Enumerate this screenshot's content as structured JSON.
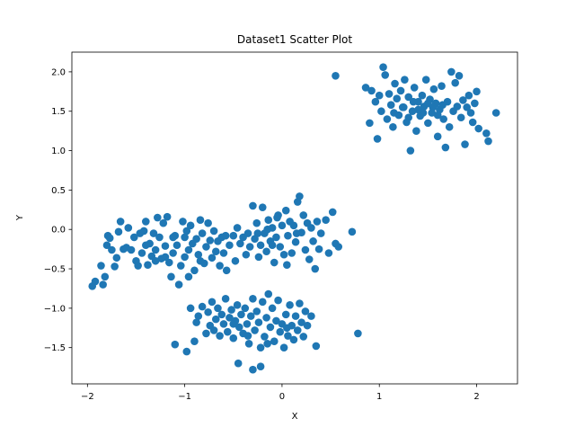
{
  "chart_data": {
    "type": "scatter",
    "title": "Dataset1 Scatter Plot",
    "xlabel": "X",
    "ylabel": "Y",
    "xlim": [
      -2.16,
      2.42
    ],
    "ylim": [
      -1.96,
      2.25
    ],
    "xticks": [
      -2,
      -1,
      0,
      1,
      2
    ],
    "xtick_labels": [
      "−2",
      "−1",
      "0",
      "1",
      "2"
    ],
    "yticks": [
      -1.5,
      -1.0,
      -0.5,
      0.0,
      0.5,
      1.0,
      1.5,
      2.0
    ],
    "ytick_labels": [
      "−1.5",
      "−1.0",
      "−0.5",
      "0.0",
      "0.5",
      "1.0",
      "1.5",
      "2.0"
    ],
    "grid": false,
    "marker_color": "#1f77b4",
    "points": [
      [
        -1.95,
        -0.72
      ],
      [
        -1.92,
        -0.66
      ],
      [
        -1.86,
        -0.46
      ],
      [
        -1.84,
        -0.7
      ],
      [
        -1.82,
        -0.6
      ],
      [
        -1.8,
        -0.2
      ],
      [
        -1.79,
        -0.08
      ],
      [
        -1.77,
        -0.11
      ],
      [
        -1.75,
        -0.26
      ],
      [
        -1.72,
        -0.47
      ],
      [
        -1.7,
        -0.36
      ],
      [
        -1.68,
        -0.03
      ],
      [
        -1.66,
        0.1
      ],
      [
        -1.63,
        -0.25
      ],
      [
        -1.6,
        -0.23
      ],
      [
        -1.58,
        0.02
      ],
      [
        -1.55,
        -0.26
      ],
      [
        -1.52,
        -0.1
      ],
      [
        -1.5,
        -0.4
      ],
      [
        -1.48,
        -0.46
      ],
      [
        -1.46,
        -0.05
      ],
      [
        -1.44,
        -0.3
      ],
      [
        -1.42,
        -0.02
      ],
      [
        -1.4,
        0.1
      ],
      [
        -1.38,
        -0.45
      ],
      [
        -1.36,
        -0.18
      ],
      [
        -1.34,
        -0.34
      ],
      [
        -1.32,
        -0.05
      ],
      [
        -1.3,
        -0.26
      ],
      [
        -1.28,
        0.15
      ],
      [
        -1.26,
        -0.1
      ],
      [
        -1.24,
        -0.37
      ],
      [
        -1.22,
        0.08
      ],
      [
        -1.2,
        -0.21
      ],
      [
        -1.18,
        0.16
      ],
      [
        -1.16,
        -0.42
      ],
      [
        -1.14,
        -0.6
      ],
      [
        -1.12,
        -0.3
      ],
      [
        -1.1,
        -0.08
      ],
      [
        -1.08,
        -0.2
      ],
      [
        -1.06,
        -0.7
      ],
      [
        -1.04,
        -0.46
      ],
      [
        -1.02,
        0.1
      ],
      [
        -1.0,
        -0.35
      ],
      [
        -0.98,
        -0.02
      ],
      [
        -0.96,
        -0.26
      ],
      [
        -0.94,
        0.05
      ],
      [
        -0.92,
        -0.18
      ],
      [
        -0.9,
        -0.52
      ],
      [
        -0.88,
        -0.12
      ],
      [
        -0.86,
        -0.32
      ],
      [
        -0.84,
        0.12
      ],
      [
        -0.82,
        -0.05
      ],
      [
        -0.8,
        -0.43
      ],
      [
        -0.78,
        -0.22
      ],
      [
        -0.76,
        0.08
      ],
      [
        -0.74,
        -0.14
      ],
      [
        -0.72,
        -0.36
      ],
      [
        -0.7,
        -0.02
      ],
      [
        -0.68,
        -0.28
      ],
      [
        -0.66,
        -0.15
      ],
      [
        -0.64,
        -0.46
      ],
      [
        -0.62,
        -0.1
      ],
      [
        -0.6,
        -0.3
      ],
      [
        -0.57,
        -0.52
      ],
      [
        -0.54,
        -0.2
      ],
      [
        -0.5,
        -0.08
      ],
      [
        -0.48,
        -0.4
      ],
      [
        -0.46,
        0.02
      ],
      [
        -0.43,
        -0.18
      ],
      [
        -0.4,
        -0.1
      ],
      [
        -0.37,
        -0.32
      ],
      [
        -0.35,
        -0.05
      ],
      [
        -0.33,
        -0.22
      ],
      [
        -0.3,
        0.3
      ],
      [
        -0.28,
        -0.12
      ],
      [
        -0.26,
        0.08
      ],
      [
        -0.24,
        -0.35
      ],
      [
        -0.22,
        -0.2
      ],
      [
        -0.2,
        0.28
      ],
      [
        -0.18,
        -0.05
      ],
      [
        -0.16,
        -0.28
      ],
      [
        -0.14,
        0.12
      ],
      [
        -0.12,
        -0.15
      ],
      [
        -0.1,
        0.02
      ],
      [
        -0.08,
        -0.42
      ],
      [
        -0.06,
        -0.1
      ],
      [
        -0.04,
        0.18
      ],
      [
        -0.02,
        -0.22
      ],
      [
        0.0,
        0.05
      ],
      [
        0.02,
        -0.32
      ],
      [
        0.04,
        0.24
      ],
      [
        0.06,
        -0.08
      ],
      [
        0.08,
        0.1
      ],
      [
        0.1,
        -0.3
      ],
      [
        0.12,
        0.05
      ],
      [
        0.14,
        -0.16
      ],
      [
        0.16,
        0.35
      ],
      [
        0.18,
        0.42
      ],
      [
        0.2,
        -0.04
      ],
      [
        0.22,
        0.18
      ],
      [
        0.24,
        -0.26
      ],
      [
        0.26,
        0.08
      ],
      [
        0.28,
        -0.38
      ],
      [
        0.3,
        0.02
      ],
      [
        0.32,
        -0.15
      ],
      [
        0.34,
        -0.5
      ],
      [
        0.36,
        0.1
      ],
      [
        0.38,
        -0.25
      ],
      [
        0.4,
        -0.05
      ],
      [
        0.45,
        0.12
      ],
      [
        0.48,
        -0.3
      ],
      [
        0.52,
        0.22
      ],
      [
        0.55,
        -0.18
      ],
      [
        0.58,
        -0.22
      ],
      [
        0.72,
        -0.03
      ],
      [
        -1.12,
        -0.1
      ],
      [
        -0.96,
        -0.6
      ],
      [
        -0.84,
        -0.4
      ],
      [
        -0.58,
        -0.08
      ],
      [
        -1.3,
        -0.4
      ],
      [
        -1.2,
        -0.35
      ],
      [
        -1.4,
        -0.2
      ],
      [
        -1.0,
        -0.1
      ],
      [
        -0.15,
        0.0
      ],
      [
        0.05,
        -0.45
      ],
      [
        -0.05,
        0.15
      ],
      [
        0.15,
        -0.05
      ],
      [
        -0.25,
        -0.05
      ],
      [
        -0.1,
        -0.2
      ],
      [
        -0.94,
        -1.0
      ],
      [
        -0.9,
        -1.42
      ],
      [
        -0.88,
        -1.18
      ],
      [
        -0.86,
        -1.1
      ],
      [
        -0.82,
        -0.98
      ],
      [
        -0.78,
        -1.32
      ],
      [
        -0.76,
        -1.05
      ],
      [
        -0.74,
        -1.22
      ],
      [
        -0.72,
        -0.92
      ],
      [
        -0.7,
        -1.28
      ],
      [
        -0.68,
        -1.14
      ],
      [
        -0.66,
        -1.0
      ],
      [
        -0.64,
        -1.35
      ],
      [
        -0.62,
        -1.08
      ],
      [
        -0.6,
        -1.2
      ],
      [
        -0.58,
        -0.88
      ],
      [
        -0.56,
        -1.3
      ],
      [
        -0.54,
        -1.12
      ],
      [
        -0.52,
        -1.02
      ],
      [
        -0.5,
        -1.38
      ],
      [
        -0.48,
        -1.16
      ],
      [
        -0.46,
        -0.96
      ],
      [
        -0.44,
        -1.24
      ],
      [
        -0.42,
        -1.08
      ],
      [
        -0.4,
        -1.32
      ],
      [
        -0.38,
        -1.0
      ],
      [
        -0.36,
        -1.2
      ],
      [
        -0.34,
        -1.45
      ],
      [
        -0.32,
        -1.1
      ],
      [
        -0.3,
        -0.88
      ],
      [
        -0.28,
        -1.28
      ],
      [
        -0.26,
        -1.04
      ],
      [
        -0.24,
        -1.18
      ],
      [
        -0.22,
        -1.5
      ],
      [
        -0.2,
        -0.92
      ],
      [
        -0.18,
        -1.36
      ],
      [
        -0.16,
        -1.12
      ],
      [
        -0.14,
        -0.82
      ],
      [
        -0.12,
        -1.24
      ],
      [
        -0.1,
        -1.0
      ],
      [
        -0.08,
        -1.42
      ],
      [
        -0.06,
        -1.16
      ],
      [
        -0.04,
        -0.9
      ],
      [
        -0.02,
        -1.3
      ],
      [
        0.0,
        -1.2
      ],
      [
        0.02,
        -1.5
      ],
      [
        0.04,
        -1.08
      ],
      [
        0.06,
        -1.35
      ],
      [
        0.08,
        -0.96
      ],
      [
        0.1,
        -1.22
      ],
      [
        0.12,
        -1.4
      ],
      [
        0.14,
        -1.1
      ],
      [
        0.16,
        -1.28
      ],
      [
        0.18,
        -0.94
      ],
      [
        0.2,
        -1.18
      ],
      [
        0.22,
        -1.36
      ],
      [
        0.24,
        -1.04
      ],
      [
        0.26,
        -1.22
      ],
      [
        0.3,
        -1.1
      ],
      [
        0.35,
        -1.48
      ],
      [
        -1.1,
        -1.46
      ],
      [
        -0.98,
        -1.55
      ],
      [
        -0.45,
        -1.7
      ],
      [
        -0.3,
        -1.78
      ],
      [
        -0.22,
        -1.74
      ],
      [
        0.78,
        -1.32
      ],
      [
        -0.5,
        -1.2
      ],
      [
        -0.35,
        -1.35
      ],
      [
        -0.15,
        -1.45
      ],
      [
        0.05,
        -1.25
      ],
      [
        0.55,
        1.95
      ],
      [
        0.86,
        1.8
      ],
      [
        0.9,
        1.35
      ],
      [
        0.92,
        1.76
      ],
      [
        0.96,
        1.62
      ],
      [
        0.98,
        1.15
      ],
      [
        1.0,
        1.7
      ],
      [
        1.02,
        1.5
      ],
      [
        1.04,
        2.06
      ],
      [
        1.06,
        1.96
      ],
      [
        1.08,
        1.4
      ],
      [
        1.1,
        1.72
      ],
      [
        1.12,
        1.58
      ],
      [
        1.14,
        1.3
      ],
      [
        1.16,
        1.85
      ],
      [
        1.18,
        1.66
      ],
      [
        1.2,
        1.45
      ],
      [
        1.22,
        1.76
      ],
      [
        1.24,
        1.55
      ],
      [
        1.26,
        1.9
      ],
      [
        1.28,
        1.36
      ],
      [
        1.3,
        1.68
      ],
      [
        1.32,
        1.0
      ],
      [
        1.34,
        1.5
      ],
      [
        1.36,
        1.8
      ],
      [
        1.38,
        1.25
      ],
      [
        1.4,
        1.62
      ],
      [
        1.42,
        1.44
      ],
      [
        1.44,
        1.7
      ],
      [
        1.46,
        1.56
      ],
      [
        1.48,
        1.9
      ],
      [
        1.5,
        1.35
      ],
      [
        1.52,
        1.65
      ],
      [
        1.54,
        1.48
      ],
      [
        1.56,
        1.78
      ],
      [
        1.58,
        1.6
      ],
      [
        1.6,
        1.18
      ],
      [
        1.62,
        1.52
      ],
      [
        1.64,
        1.82
      ],
      [
        1.66,
        1.4
      ],
      [
        1.68,
        1.04
      ],
      [
        1.7,
        1.62
      ],
      [
        1.72,
        1.3
      ],
      [
        1.74,
        2.0
      ],
      [
        1.76,
        1.5
      ],
      [
        1.78,
        1.86
      ],
      [
        1.8,
        1.56
      ],
      [
        1.82,
        1.95
      ],
      [
        1.84,
        1.42
      ],
      [
        1.86,
        1.64
      ],
      [
        1.88,
        1.08
      ],
      [
        1.9,
        1.55
      ],
      [
        1.92,
        1.7
      ],
      [
        1.94,
        1.48
      ],
      [
        1.96,
        1.36
      ],
      [
        1.98,
        1.6
      ],
      [
        2.0,
        1.75
      ],
      [
        2.02,
        1.28
      ],
      [
        2.1,
        1.22
      ],
      [
        2.12,
        1.12
      ],
      [
        2.2,
        1.48
      ],
      [
        1.25,
        1.55
      ],
      [
        1.35,
        1.62
      ],
      [
        1.45,
        1.48
      ],
      [
        1.55,
        1.55
      ],
      [
        1.65,
        1.58
      ],
      [
        1.15,
        1.48
      ],
      [
        1.4,
        1.52
      ],
      [
        1.5,
        1.6
      ],
      [
        1.6,
        1.45
      ],
      [
        1.3,
        1.42
      ]
    ]
  }
}
